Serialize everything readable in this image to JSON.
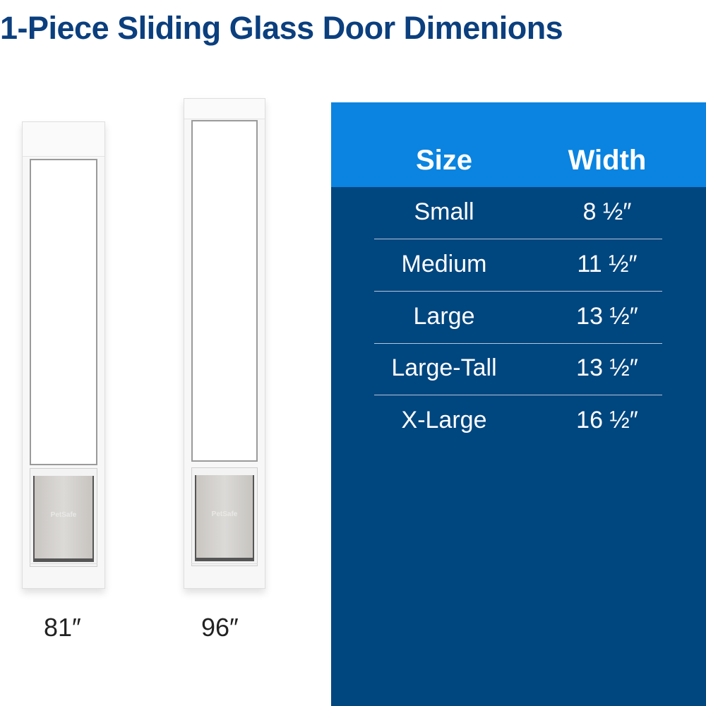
{
  "title": "1-Piece Sliding Glass Door Dimenions",
  "doors": [
    {
      "height_label": "81″",
      "logo": "PetSafe"
    },
    {
      "height_label": "96″",
      "logo": "PetSafe"
    }
  ],
  "table": {
    "headers": [
      "Size",
      "Width"
    ],
    "rows": [
      [
        "Small",
        "8 ½″"
      ],
      [
        "Medium",
        "11 ½″"
      ],
      [
        "Large",
        "13 ½″"
      ],
      [
        "Large-Tall",
        "13 ½″"
      ],
      [
        "X-Large",
        "16 ½″"
      ]
    ],
    "colors": {
      "header": "#0a84e0",
      "body": "#00467f",
      "title": "#0b3f7e"
    }
  }
}
